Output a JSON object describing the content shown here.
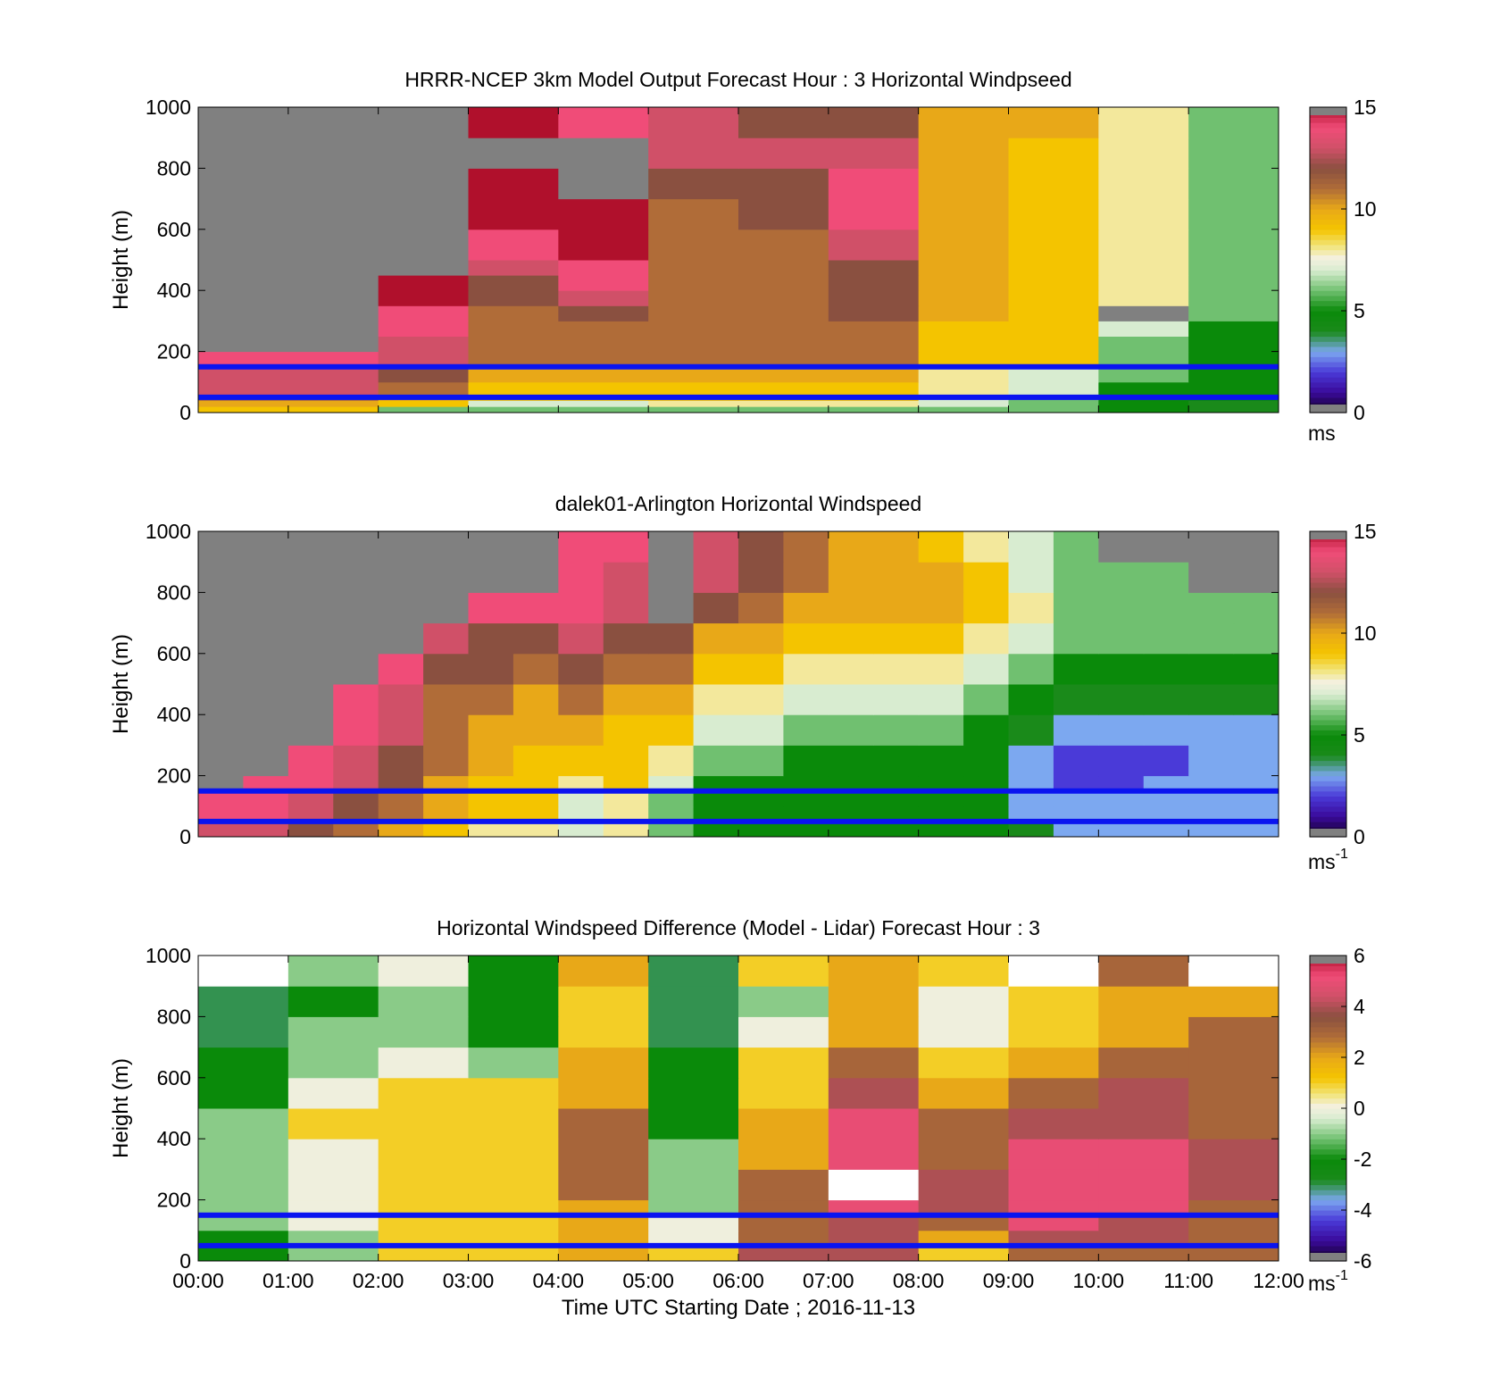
{
  "chart_data": [
    {
      "type": "heatmap",
      "title": "HRRR-NCEP 3km Model Output   Forecast Hour : 3 Horizontal Windpseed",
      "ylabel": "Height (m)",
      "xlim": [
        0,
        12
      ],
      "ylim": [
        0,
        1000
      ],
      "y_ticks": [
        "0",
        "200",
        "400",
        "600",
        "800",
        "1000"
      ],
      "x_ticks": [],
      "colorbar": {
        "range": [
          0,
          15
        ],
        "ticks": [
          "0",
          "5",
          "10",
          "15"
        ],
        "unit": "ms",
        "unit_sup": ""
      },
      "reference_lines_m": [
        150,
        50
      ],
      "grid": false,
      "heights_m": [
        0,
        20,
        40,
        60,
        100,
        150,
        200,
        250,
        300,
        350,
        400,
        450,
        500,
        600,
        700,
        800,
        900,
        1000
      ],
      "times_h": [
        0,
        1,
        2,
        3,
        4,
        5,
        6,
        7,
        8,
        9,
        10,
        11,
        12
      ],
      "values": [
        [
          9,
          9,
          6,
          6,
          6,
          6,
          6,
          6,
          6,
          6,
          5,
          4
        ],
        [
          10,
          10,
          9,
          7,
          7,
          8,
          8,
          8,
          7,
          6,
          5,
          4
        ],
        [
          11,
          11,
          10,
          9,
          9,
          9,
          9,
          9,
          7,
          6,
          5,
          5
        ],
        [
          13,
          13,
          11,
          9,
          9,
          9,
          9,
          9,
          8,
          7,
          5,
          5
        ],
        [
          13,
          13,
          12,
          10,
          10,
          10,
          10,
          10,
          8,
          7,
          6,
          5
        ],
        [
          14,
          14,
          13,
          11,
          11,
          11,
          11,
          11,
          9,
          9,
          6,
          5
        ],
        [
          null,
          null,
          13,
          11,
          11,
          11,
          11,
          11,
          9,
          9,
          6,
          5
        ],
        [
          null,
          null,
          14,
          11,
          11,
          11,
          11,
          11,
          9,
          9,
          7,
          5
        ],
        [
          null,
          null,
          14,
          11,
          12,
          11,
          11,
          12,
          10,
          9,
          null,
          6
        ],
        [
          null,
          null,
          15,
          12,
          13,
          11,
          11,
          12,
          10,
          9,
          8,
          6
        ],
        [
          null,
          null,
          15,
          12,
          14,
          11,
          11,
          12,
          10,
          9,
          8,
          6
        ],
        [
          null,
          null,
          null,
          13,
          14,
          11,
          11,
          12,
          10,
          9,
          8,
          6
        ],
        [
          null,
          null,
          null,
          14,
          15,
          11,
          11,
          13,
          10,
          9,
          8,
          6
        ],
        [
          null,
          null,
          null,
          15,
          15,
          11,
          12,
          14,
          10,
          9,
          8,
          6
        ],
        [
          null,
          null,
          null,
          15,
          null,
          12,
          12,
          14,
          10,
          9,
          8,
          6
        ],
        [
          null,
          null,
          null,
          null,
          null,
          13,
          13,
          13,
          10,
          9,
          8,
          6
        ],
        [
          null,
          null,
          null,
          15,
          14,
          13,
          12,
          12,
          10,
          10,
          8,
          6
        ]
      ]
    },
    {
      "type": "heatmap",
      "title": "dalek01-Arlington  Horizontal Windspeed",
      "ylabel": "Height (m)",
      "xlim": [
        0,
        12
      ],
      "ylim": [
        0,
        1000
      ],
      "y_ticks": [
        "0",
        "200",
        "400",
        "600",
        "800",
        "1000"
      ],
      "x_ticks": [],
      "colorbar": {
        "range": [
          0,
          15
        ],
        "ticks": [
          "0",
          "5",
          "10",
          "15"
        ],
        "unit": "ms",
        "unit_sup": "-1"
      },
      "reference_lines_m": [
        150,
        50
      ],
      "grid": false,
      "heights_m": [
        0,
        50,
        100,
        150,
        200,
        300,
        400,
        500,
        600,
        700,
        800,
        900,
        1000
      ],
      "times_h": [
        0,
        0.5,
        1,
        1.5,
        2,
        2.5,
        3,
        3.5,
        4,
        4.5,
        5,
        5.5,
        6,
        6.5,
        7,
        7.5,
        8,
        8.5,
        9,
        9.5,
        10,
        10.5,
        11,
        11.5,
        12
      ],
      "values": [
        [
          13,
          13,
          12,
          11,
          10,
          9,
          8,
          8,
          7,
          8,
          6,
          5,
          5,
          5,
          5,
          5,
          5,
          5,
          4,
          3,
          3,
          3,
          3,
          3
        ],
        [
          14,
          14,
          13,
          12,
          11,
          10,
          9,
          9,
          7,
          8,
          6,
          5,
          5,
          5,
          5,
          5,
          5,
          5,
          3,
          3,
          3,
          3,
          3,
          3
        ],
        [
          14,
          14,
          13,
          12,
          11,
          10,
          9,
          9,
          7,
          8,
          6,
          5,
          5,
          5,
          5,
          5,
          5,
          5,
          3,
          3,
          3,
          3,
          3,
          3
        ],
        [
          null,
          14,
          14,
          13,
          12,
          10,
          9,
          9,
          8,
          9,
          7,
          5,
          5,
          5,
          5,
          5,
          5,
          5,
          3,
          2,
          2,
          3,
          3,
          3
        ],
        [
          null,
          null,
          14,
          13,
          12,
          11,
          10,
          9,
          9,
          9,
          8,
          6,
          6,
          5,
          5,
          5,
          5,
          5,
          3,
          2,
          2,
          2,
          3,
          3
        ],
        [
          null,
          null,
          null,
          14,
          13,
          11,
          10,
          10,
          10,
          9,
          9,
          7,
          7,
          6,
          6,
          6,
          6,
          5,
          4,
          3,
          3,
          3,
          3,
          3
        ],
        [
          null,
          null,
          null,
          14,
          13,
          11,
          11,
          10,
          11,
          10,
          10,
          8,
          8,
          7,
          7,
          7,
          7,
          6,
          5,
          4,
          4,
          4,
          4,
          4
        ],
        [
          null,
          null,
          null,
          null,
          14,
          12,
          12,
          11,
          12,
          11,
          11,
          9,
          9,
          8,
          8,
          8,
          8,
          7,
          6,
          5,
          5,
          5,
          5,
          5
        ],
        [
          null,
          null,
          null,
          null,
          null,
          13,
          12,
          12,
          13,
          12,
          12,
          10,
          10,
          9,
          9,
          9,
          9,
          8,
          7,
          6,
          6,
          6,
          6,
          6
        ],
        [
          null,
          null,
          null,
          null,
          null,
          null,
          14,
          14,
          14,
          13,
          null,
          12,
          11,
          10,
          10,
          10,
          10,
          9,
          8,
          6,
          6,
          6,
          6,
          6
        ],
        [
          null,
          null,
          null,
          null,
          null,
          null,
          null,
          null,
          14,
          13,
          null,
          13,
          12,
          11,
          10,
          10,
          10,
          9,
          7,
          6,
          6,
          6,
          null,
          null
        ],
        [
          null,
          null,
          null,
          null,
          null,
          null,
          null,
          null,
          14,
          14,
          null,
          13,
          12,
          11,
          10,
          10,
          9,
          8,
          7,
          6,
          null,
          null,
          null,
          null
        ]
      ]
    },
    {
      "type": "heatmap",
      "title": "Horizontal Windspeed Difference (Model - Lidar) Forecast Hour : 3",
      "ylabel": "Height (m)",
      "xlabel": "Time UTC  Starting Date ; 2016-11-13",
      "xlim": [
        0,
        12
      ],
      "ylim": [
        0,
        1000
      ],
      "y_ticks": [
        "0",
        "200",
        "400",
        "600",
        "800",
        "1000"
      ],
      "x_ticks": [
        "00:00",
        "01:00",
        "02:00",
        "03:00",
        "04:00",
        "05:00",
        "06:00",
        "07:00",
        "08:00",
        "09:00",
        "10:00",
        "11:00",
        "12:00"
      ],
      "colorbar": {
        "range": [
          -6,
          6
        ],
        "ticks": [
          "-6",
          "-4",
          "-2",
          "0",
          "2",
          "4",
          "6"
        ],
        "unit": "ms",
        "unit_sup": "-1"
      },
      "reference_lines_m": [
        150,
        50
      ],
      "grid": false,
      "heights_m": [
        0,
        50,
        100,
        150,
        200,
        300,
        400,
        500,
        600,
        700,
        800,
        900,
        1000
      ],
      "times_h": [
        0,
        1,
        2,
        3,
        4,
        5,
        6,
        7,
        8,
        9,
        10,
        11,
        12
      ],
      "values": [
        [
          -2,
          -1,
          1,
          1,
          2,
          1,
          4,
          4,
          1,
          3,
          3,
          3
        ],
        [
          -2,
          -1,
          1,
          1,
          2,
          0,
          3,
          4,
          2,
          4,
          4,
          3
        ],
        [
          -1,
          0,
          1,
          1,
          2,
          0,
          3,
          4,
          3,
          5,
          4,
          3
        ],
        [
          -1,
          0,
          1,
          1,
          2,
          -1,
          3,
          5,
          4,
          5,
          5,
          3
        ],
        [
          -1,
          0,
          1,
          1,
          3,
          -1,
          3,
          null,
          4,
          5,
          5,
          4
        ],
        [
          -1,
          0,
          1,
          1,
          3,
          -1,
          2,
          5,
          3,
          5,
          5,
          4
        ],
        [
          -1,
          1,
          1,
          1,
          3,
          -2,
          2,
          5,
          3,
          4,
          4,
          3
        ],
        [
          -2,
          0,
          1,
          1,
          2,
          -2,
          1,
          4,
          2,
          3,
          4,
          3
        ],
        [
          -2,
          -1,
          0,
          -1,
          2,
          -2,
          1,
          3,
          1,
          2,
          3,
          3
        ],
        [
          -3,
          -1,
          -1,
          -2,
          1,
          -3,
          0,
          2,
          0,
          1,
          2,
          3
        ],
        [
          -3,
          -2,
          -1,
          -2,
          1,
          -3,
          -1,
          2,
          0,
          1,
          2,
          2
        ],
        [
          null,
          -1,
          0,
          -2,
          2,
          -3,
          1,
          2,
          1,
          null,
          3,
          null
        ]
      ]
    }
  ]
}
